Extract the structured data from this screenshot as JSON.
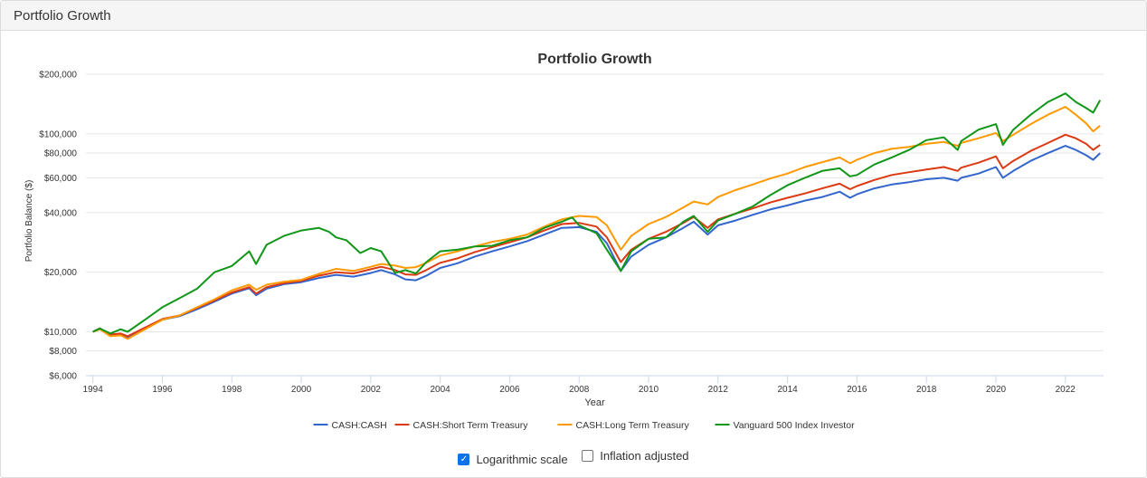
{
  "panel": {
    "title": "Portfolio Growth"
  },
  "controls": {
    "log_scale": {
      "label": "Logarithmic scale",
      "checked": true,
      "check_glyph": "✓"
    },
    "inflation": {
      "label": "Inflation adjusted",
      "checked": false
    }
  },
  "chart_data": {
    "type": "line",
    "title": "Portfolio Growth",
    "xlabel": "Year",
    "ylabel": "Portfolio Balance ($)",
    "yscale": "log",
    "ylim": [
      6000,
      220000
    ],
    "xlim": [
      1993.8,
      2023.1
    ],
    "x_ticks": [
      1994,
      1996,
      1998,
      2000,
      2002,
      2004,
      2006,
      2008,
      2010,
      2012,
      2014,
      2016,
      2018,
      2020,
      2022
    ],
    "y_ticks": [
      {
        "value": 6000,
        "label": "$6,000"
      },
      {
        "value": 8000,
        "label": "$8,000"
      },
      {
        "value": 10000,
        "label": "$10,000"
      },
      {
        "value": 20000,
        "label": "$20,000"
      },
      {
        "value": 40000,
        "label": "$40,000"
      },
      {
        "value": 60000,
        "label": "$60,000"
      },
      {
        "value": 80000,
        "label": "$80,000"
      },
      {
        "value": 100000,
        "label": "$100,000"
      },
      {
        "value": 200000,
        "label": "$200,000"
      }
    ],
    "grid": true,
    "legend_position": "bottom",
    "series": [
      {
        "name": "CASH:CASH",
        "color": "#3366cc",
        "points": [
          [
            1994.0,
            10000
          ],
          [
            1994.2,
            10400
          ],
          [
            1994.5,
            9600
          ],
          [
            1994.8,
            9700
          ],
          [
            1995.0,
            9400
          ],
          [
            1995.5,
            10400
          ],
          [
            1996.0,
            11500
          ],
          [
            1996.5,
            12000
          ],
          [
            1997.0,
            13000
          ],
          [
            1997.5,
            14200
          ],
          [
            1998.0,
            15600
          ],
          [
            1998.5,
            16600
          ],
          [
            1998.7,
            15300
          ],
          [
            1999.0,
            16500
          ],
          [
            1999.5,
            17400
          ],
          [
            2000.0,
            17800
          ],
          [
            2000.5,
            18700
          ],
          [
            2001.0,
            19400
          ],
          [
            2001.5,
            19000
          ],
          [
            2002.0,
            19800
          ],
          [
            2002.3,
            20500
          ],
          [
            2002.7,
            19500
          ],
          [
            2003.0,
            18400
          ],
          [
            2003.3,
            18200
          ],
          [
            2003.6,
            19200
          ],
          [
            2004.0,
            21000
          ],
          [
            2004.5,
            22200
          ],
          [
            2005.0,
            24000
          ],
          [
            2005.5,
            25500
          ],
          [
            2006.0,
            27000
          ],
          [
            2006.5,
            28700
          ],
          [
            2007.0,
            31000
          ],
          [
            2007.5,
            33500
          ],
          [
            2008.0,
            33800
          ],
          [
            2008.5,
            32000
          ],
          [
            2008.8,
            28000
          ],
          [
            2009.2,
            20300
          ],
          [
            2009.5,
            24000
          ],
          [
            2010.0,
            27500
          ],
          [
            2010.5,
            30000
          ],
          [
            2011.0,
            33500
          ],
          [
            2011.3,
            36000
          ],
          [
            2011.7,
            31000
          ],
          [
            2012.0,
            34500
          ],
          [
            2012.5,
            36500
          ],
          [
            2013.0,
            39000
          ],
          [
            2013.5,
            41500
          ],
          [
            2014.0,
            43500
          ],
          [
            2014.5,
            46000
          ],
          [
            2015.0,
            48000
          ],
          [
            2015.5,
            51000
          ],
          [
            2015.8,
            47500
          ],
          [
            2016.0,
            49500
          ],
          [
            2016.5,
            53000
          ],
          [
            2017.0,
            55500
          ],
          [
            2017.5,
            57000
          ],
          [
            2018.0,
            59000
          ],
          [
            2018.5,
            60000
          ],
          [
            2018.9,
            58000
          ],
          [
            2019.0,
            60000
          ],
          [
            2019.5,
            63000
          ],
          [
            2020.0,
            68000
          ],
          [
            2020.2,
            60000
          ],
          [
            2020.5,
            65000
          ],
          [
            2021.0,
            73000
          ],
          [
            2021.5,
            80000
          ],
          [
            2022.0,
            87000
          ],
          [
            2022.3,
            83000
          ],
          [
            2022.6,
            78000
          ],
          [
            2022.8,
            74000
          ],
          [
            2023.0,
            80000
          ]
        ]
      },
      {
        "name": "CASH:Short Term Treasury",
        "color": "#dc3912",
        "points": [
          [
            1994.0,
            10000
          ],
          [
            1994.2,
            10400
          ],
          [
            1994.5,
            9700
          ],
          [
            1994.8,
            9800
          ],
          [
            1995.0,
            9500
          ],
          [
            1995.5,
            10500
          ],
          [
            1996.0,
            11600
          ],
          [
            1996.5,
            12100
          ],
          [
            1997.0,
            13200
          ],
          [
            1997.5,
            14400
          ],
          [
            1998.0,
            15800
          ],
          [
            1998.5,
            16800
          ],
          [
            1998.7,
            15600
          ],
          [
            1999.0,
            16800
          ],
          [
            1999.5,
            17600
          ],
          [
            2000.0,
            18100
          ],
          [
            2000.5,
            19200
          ],
          [
            2001.0,
            20000
          ],
          [
            2001.5,
            19700
          ],
          [
            2002.0,
            20700
          ],
          [
            2002.3,
            21300
          ],
          [
            2002.7,
            20500
          ],
          [
            2003.0,
            19500
          ],
          [
            2003.3,
            19400
          ],
          [
            2003.6,
            20500
          ],
          [
            2004.0,
            22300
          ],
          [
            2004.5,
            23500
          ],
          [
            2005.0,
            25300
          ],
          [
            2005.5,
            26800
          ],
          [
            2006.0,
            28300
          ],
          [
            2006.5,
            30000
          ],
          [
            2007.0,
            32500
          ],
          [
            2007.5,
            35000
          ],
          [
            2008.0,
            35500
          ],
          [
            2008.5,
            34000
          ],
          [
            2008.8,
            30000
          ],
          [
            2009.2,
            22500
          ],
          [
            2009.5,
            26000
          ],
          [
            2010.0,
            29500
          ],
          [
            2010.5,
            32000
          ],
          [
            2011.0,
            35500
          ],
          [
            2011.3,
            38000
          ],
          [
            2011.7,
            33500
          ],
          [
            2012.0,
            37000
          ],
          [
            2012.5,
            39500
          ],
          [
            2013.0,
            42000
          ],
          [
            2013.5,
            45000
          ],
          [
            2014.0,
            47500
          ],
          [
            2014.5,
            50000
          ],
          [
            2015.0,
            53000
          ],
          [
            2015.5,
            56000
          ],
          [
            2015.8,
            52500
          ],
          [
            2016.0,
            54500
          ],
          [
            2016.5,
            58500
          ],
          [
            2017.0,
            62000
          ],
          [
            2017.5,
            64000
          ],
          [
            2018.0,
            66000
          ],
          [
            2018.5,
            68000
          ],
          [
            2018.9,
            65000
          ],
          [
            2019.0,
            67500
          ],
          [
            2019.5,
            71500
          ],
          [
            2020.0,
            77000
          ],
          [
            2020.2,
            67000
          ],
          [
            2020.5,
            73000
          ],
          [
            2021.0,
            82000
          ],
          [
            2021.5,
            90000
          ],
          [
            2022.0,
            99000
          ],
          [
            2022.3,
            95000
          ],
          [
            2022.6,
            89000
          ],
          [
            2022.8,
            83000
          ],
          [
            2023.0,
            88000
          ]
        ]
      },
      {
        "name": "CASH:Long Term Treasury",
        "color": "#ff9900",
        "points": [
          [
            1994.0,
            10000
          ],
          [
            1994.2,
            10300
          ],
          [
            1994.5,
            9500
          ],
          [
            1994.8,
            9600
          ],
          [
            1995.0,
            9200
          ],
          [
            1995.5,
            10300
          ],
          [
            1996.0,
            11500
          ],
          [
            1996.5,
            12100
          ],
          [
            1997.0,
            13300
          ],
          [
            1997.5,
            14600
          ],
          [
            1998.0,
            16200
          ],
          [
            1998.5,
            17300
          ],
          [
            1998.7,
            16300
          ],
          [
            1999.0,
            17300
          ],
          [
            1999.5,
            17900
          ],
          [
            2000.0,
            18300
          ],
          [
            2000.5,
            19600
          ],
          [
            2001.0,
            20800
          ],
          [
            2001.5,
            20300
          ],
          [
            2002.0,
            21300
          ],
          [
            2002.3,
            22000
          ],
          [
            2002.7,
            21600
          ],
          [
            2003.0,
            21000
          ],
          [
            2003.3,
            21200
          ],
          [
            2003.6,
            22300
          ],
          [
            2004.0,
            24300
          ],
          [
            2004.5,
            25500
          ],
          [
            2005.0,
            27000
          ],
          [
            2005.5,
            28500
          ],
          [
            2006.0,
            29500
          ],
          [
            2006.5,
            31000
          ],
          [
            2007.0,
            34000
          ],
          [
            2007.5,
            37000
          ],
          [
            2008.0,
            38500
          ],
          [
            2008.5,
            38000
          ],
          [
            2008.8,
            34500
          ],
          [
            2009.2,
            26000
          ],
          [
            2009.5,
            30500
          ],
          [
            2010.0,
            35000
          ],
          [
            2010.5,
            38000
          ],
          [
            2011.0,
            42500
          ],
          [
            2011.3,
            45500
          ],
          [
            2011.7,
            44000
          ],
          [
            2012.0,
            48000
          ],
          [
            2012.5,
            52000
          ],
          [
            2013.0,
            55500
          ],
          [
            2013.5,
            59500
          ],
          [
            2014.0,
            63000
          ],
          [
            2014.5,
            68000
          ],
          [
            2015.0,
            72000
          ],
          [
            2015.5,
            76000
          ],
          [
            2015.8,
            71000
          ],
          [
            2016.0,
            74000
          ],
          [
            2016.5,
            80000
          ],
          [
            2017.0,
            84000
          ],
          [
            2017.5,
            86000
          ],
          [
            2018.0,
            89000
          ],
          [
            2018.5,
            91000
          ],
          [
            2018.9,
            87000
          ],
          [
            2019.0,
            90000
          ],
          [
            2019.5,
            95000
          ],
          [
            2020.0,
            101000
          ],
          [
            2020.2,
            92000
          ],
          [
            2020.5,
            99000
          ],
          [
            2021.0,
            112000
          ],
          [
            2021.5,
            125000
          ],
          [
            2022.0,
            137000
          ],
          [
            2022.3,
            125000
          ],
          [
            2022.6,
            113000
          ],
          [
            2022.8,
            103000
          ],
          [
            2023.0,
            110000
          ]
        ]
      },
      {
        "name": "Vanguard 500 Index Investor",
        "color": "#109618",
        "points": [
          [
            1994.0,
            10000
          ],
          [
            1994.2,
            10400
          ],
          [
            1994.5,
            9800
          ],
          [
            1994.8,
            10300
          ],
          [
            1995.0,
            10000
          ],
          [
            1995.5,
            11500
          ],
          [
            1996.0,
            13300
          ],
          [
            1996.5,
            14800
          ],
          [
            1997.0,
            16500
          ],
          [
            1997.5,
            20000
          ],
          [
            1998.0,
            21500
          ],
          [
            1998.5,
            25500
          ],
          [
            1998.7,
            22000
          ],
          [
            1999.0,
            27500
          ],
          [
            1999.5,
            30500
          ],
          [
            2000.0,
            32500
          ],
          [
            2000.5,
            33500
          ],
          [
            2000.8,
            32000
          ],
          [
            2001.0,
            30000
          ],
          [
            2001.3,
            29000
          ],
          [
            2001.7,
            25000
          ],
          [
            2002.0,
            26500
          ],
          [
            2002.3,
            25500
          ],
          [
            2002.7,
            19800
          ],
          [
            2003.0,
            20500
          ],
          [
            2003.3,
            19700
          ],
          [
            2003.6,
            22500
          ],
          [
            2004.0,
            25500
          ],
          [
            2004.5,
            26000
          ],
          [
            2005.0,
            27000
          ],
          [
            2005.5,
            27200
          ],
          [
            2006.0,
            29000
          ],
          [
            2006.5,
            30000
          ],
          [
            2007.0,
            33500
          ],
          [
            2007.5,
            36000
          ],
          [
            2007.8,
            37800
          ],
          [
            2008.0,
            34500
          ],
          [
            2008.5,
            31500
          ],
          [
            2008.8,
            26000
          ],
          [
            2009.2,
            20300
          ],
          [
            2009.5,
            25500
          ],
          [
            2010.0,
            29500
          ],
          [
            2010.5,
            30000
          ],
          [
            2011.0,
            36000
          ],
          [
            2011.3,
            38500
          ],
          [
            2011.7,
            32000
          ],
          [
            2012.0,
            36500
          ],
          [
            2012.5,
            39500
          ],
          [
            2013.0,
            43000
          ],
          [
            2013.5,
            49000
          ],
          [
            2014.0,
            55000
          ],
          [
            2014.5,
            60000
          ],
          [
            2015.0,
            65000
          ],
          [
            2015.5,
            67000
          ],
          [
            2015.8,
            61000
          ],
          [
            2016.0,
            62000
          ],
          [
            2016.5,
            70000
          ],
          [
            2017.0,
            76000
          ],
          [
            2017.5,
            83000
          ],
          [
            2018.0,
            93000
          ],
          [
            2018.5,
            96000
          ],
          [
            2018.9,
            83000
          ],
          [
            2019.0,
            92000
          ],
          [
            2019.5,
            105000
          ],
          [
            2020.0,
            112000
          ],
          [
            2020.2,
            88000
          ],
          [
            2020.5,
            105000
          ],
          [
            2021.0,
            125000
          ],
          [
            2021.5,
            145000
          ],
          [
            2022.0,
            160000
          ],
          [
            2022.3,
            145000
          ],
          [
            2022.6,
            135000
          ],
          [
            2022.8,
            128000
          ],
          [
            2023.0,
            148000
          ]
        ]
      }
    ]
  }
}
